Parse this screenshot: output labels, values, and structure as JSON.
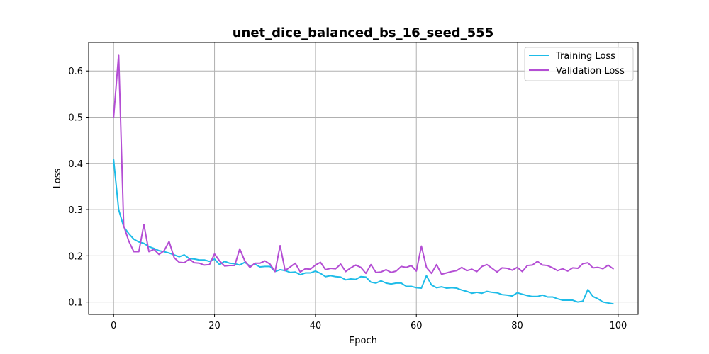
{
  "chart_data": {
    "type": "line",
    "title": "unet_dice_balanced_bs_16_seed_555",
    "xlabel": "Epoch",
    "ylabel": "Loss",
    "xlim": [
      -4.95,
      103.95
    ],
    "ylim": [
      0.0734,
      0.6616
    ],
    "xticks": [
      0,
      20,
      40,
      60,
      80,
      100
    ],
    "yticks": [
      0.1,
      0.2,
      0.3,
      0.4,
      0.5,
      0.6
    ],
    "grid": true,
    "legend_position": "top-right",
    "series": [
      {
        "name": "Training Loss",
        "color": "#1ebce8",
        "x": [
          0,
          1,
          2,
          3,
          4,
          5,
          6,
          7,
          8,
          9,
          10,
          11,
          12,
          13,
          14,
          15,
          16,
          17,
          18,
          19,
          20,
          21,
          22,
          23,
          24,
          25,
          26,
          27,
          28,
          29,
          30,
          31,
          32,
          33,
          34,
          35,
          36,
          37,
          38,
          39,
          40,
          41,
          42,
          43,
          44,
          45,
          46,
          47,
          48,
          49,
          50,
          51,
          52,
          53,
          54,
          55,
          56,
          57,
          58,
          59,
          60,
          61,
          62,
          63,
          64,
          65,
          66,
          67,
          68,
          69,
          70,
          71,
          72,
          73,
          74,
          75,
          76,
          77,
          78,
          79,
          80,
          81,
          82,
          83,
          84,
          85,
          86,
          87,
          88,
          89,
          90,
          91,
          92,
          93,
          94,
          95,
          96,
          97,
          98,
          99
        ],
        "values": [
          0.408,
          0.3,
          0.263,
          0.248,
          0.236,
          0.23,
          0.227,
          0.22,
          0.216,
          0.211,
          0.209,
          0.206,
          0.202,
          0.198,
          0.202,
          0.194,
          0.193,
          0.191,
          0.191,
          0.188,
          0.193,
          0.181,
          0.188,
          0.184,
          0.183,
          0.18,
          0.186,
          0.178,
          0.182,
          0.176,
          0.177,
          0.177,
          0.166,
          0.17,
          0.168,
          0.164,
          0.165,
          0.159,
          0.163,
          0.163,
          0.167,
          0.162,
          0.155,
          0.157,
          0.155,
          0.154,
          0.148,
          0.15,
          0.149,
          0.155,
          0.154,
          0.143,
          0.141,
          0.146,
          0.141,
          0.139,
          0.141,
          0.141,
          0.134,
          0.134,
          0.131,
          0.13,
          0.157,
          0.137,
          0.131,
          0.133,
          0.13,
          0.131,
          0.13,
          0.126,
          0.123,
          0.119,
          0.121,
          0.119,
          0.123,
          0.121,
          0.12,
          0.116,
          0.115,
          0.113,
          0.12,
          0.117,
          0.114,
          0.112,
          0.112,
          0.115,
          0.111,
          0.111,
          0.107,
          0.104,
          0.104,
          0.104,
          0.1,
          0.102,
          0.127,
          0.112,
          0.107,
          0.1,
          0.098,
          0.096
        ]
      },
      {
        "name": "Validation Loss",
        "color": "#b44ed4",
        "x": [
          0,
          1,
          2,
          3,
          4,
          5,
          6,
          7,
          8,
          9,
          10,
          11,
          12,
          13,
          14,
          15,
          16,
          17,
          18,
          19,
          20,
          21,
          22,
          23,
          24,
          25,
          26,
          27,
          28,
          29,
          30,
          31,
          32,
          33,
          34,
          35,
          36,
          37,
          38,
          39,
          40,
          41,
          42,
          43,
          44,
          45,
          46,
          47,
          48,
          49,
          50,
          51,
          52,
          53,
          54,
          55,
          56,
          57,
          58,
          59,
          60,
          61,
          62,
          63,
          64,
          65,
          66,
          67,
          68,
          69,
          70,
          71,
          72,
          73,
          74,
          75,
          76,
          77,
          78,
          79,
          80,
          81,
          82,
          83,
          84,
          85,
          86,
          87,
          88,
          89,
          90,
          91,
          92,
          93,
          94,
          95,
          96,
          97,
          98,
          99
        ],
        "values": [
          0.5,
          0.635,
          0.265,
          0.232,
          0.209,
          0.209,
          0.268,
          0.209,
          0.214,
          0.203,
          0.211,
          0.231,
          0.196,
          0.186,
          0.185,
          0.193,
          0.185,
          0.184,
          0.18,
          0.181,
          0.204,
          0.189,
          0.178,
          0.179,
          0.179,
          0.215,
          0.189,
          0.175,
          0.184,
          0.184,
          0.189,
          0.182,
          0.166,
          0.222,
          0.168,
          0.176,
          0.184,
          0.165,
          0.172,
          0.171,
          0.18,
          0.186,
          0.17,
          0.173,
          0.172,
          0.182,
          0.166,
          0.174,
          0.18,
          0.175,
          0.162,
          0.181,
          0.164,
          0.165,
          0.17,
          0.164,
          0.167,
          0.177,
          0.175,
          0.179,
          0.167,
          0.221,
          0.175,
          0.162,
          0.181,
          0.16,
          0.163,
          0.166,
          0.168,
          0.175,
          0.168,
          0.171,
          0.166,
          0.177,
          0.181,
          0.173,
          0.165,
          0.174,
          0.173,
          0.169,
          0.175,
          0.166,
          0.179,
          0.18,
          0.188,
          0.18,
          0.179,
          0.174,
          0.168,
          0.172,
          0.167,
          0.174,
          0.173,
          0.183,
          0.185,
          0.174,
          0.175,
          0.172,
          0.18,
          0.172
        ]
      }
    ]
  }
}
